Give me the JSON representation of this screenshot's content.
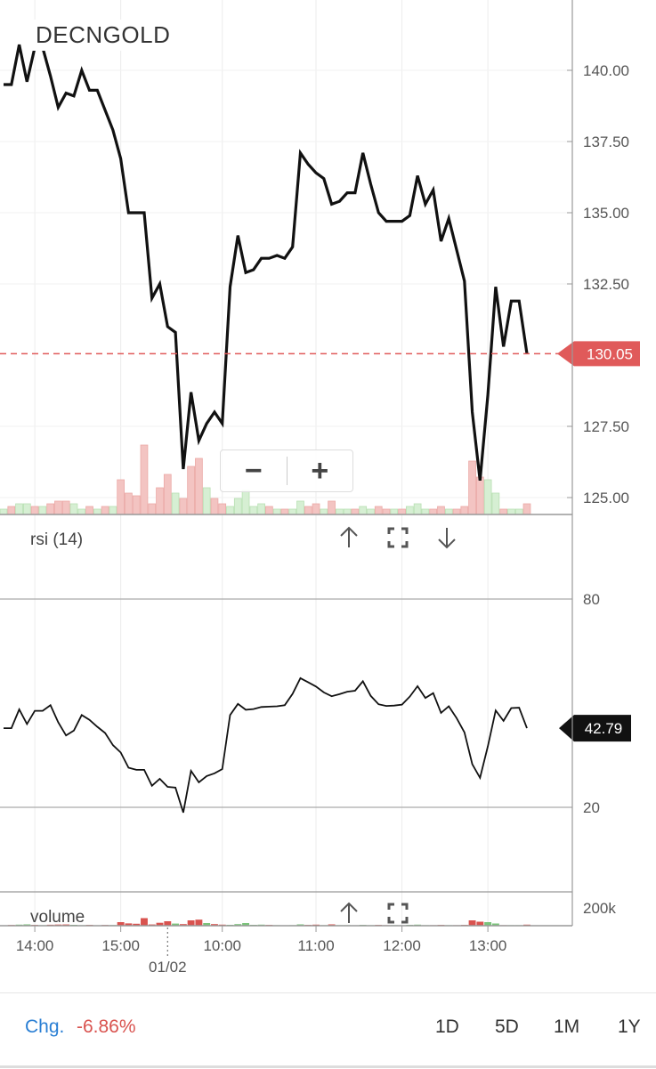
{
  "symbol": "DECNGOLD",
  "price_panel": {
    "y_ticks": [
      "140.00",
      "137.50",
      "135.00",
      "132.50",
      "127.50",
      "125.00"
    ],
    "last_price_label": "130.05",
    "last_price_color": "#e05a5a"
  },
  "rsi_panel": {
    "title": "rsi (14)",
    "y_ticks": [
      "80",
      "20"
    ],
    "last_value_label": "42.79"
  },
  "volume_panel": {
    "title": "volume",
    "y_tick": "200k"
  },
  "time_axis": {
    "labels": [
      "14:00",
      "15:00",
      "10:00",
      "11:00",
      "12:00",
      "13:00"
    ],
    "date_label": "01/02"
  },
  "zoom_controls": {
    "zoom_out": "−",
    "zoom_in": "+"
  },
  "footer": {
    "chg_label": "Chg.",
    "chg_value": "-6.86%",
    "ranges": [
      "1D",
      "5D",
      "1M",
      "1Y"
    ]
  },
  "colors": {
    "up": "#7bc47b",
    "down": "#d9534f",
    "price_line": "#111111",
    "chg_label": "#2a7fd4",
    "chg_value": "#d9534f"
  },
  "chart_data": {
    "type": "line",
    "price": {
      "ylim": [
        124.4,
        141.9
      ],
      "last": 130.05,
      "values": [
        139.5,
        139.5,
        140.9,
        139.6,
        140.8,
        140.8,
        139.8,
        138.7,
        139.2,
        139.1,
        140.0,
        139.3,
        139.3,
        138.6,
        137.9,
        136.9,
        135.0,
        135.0,
        135.0,
        132.0,
        132.5,
        131.0,
        130.8,
        126.0,
        128.7,
        127.0,
        127.6,
        128.0,
        127.6,
        132.4,
        134.2,
        132.9,
        133.0,
        133.4,
        133.4,
        133.5,
        133.4,
        133.8,
        137.1,
        136.7,
        136.4,
        136.2,
        135.3,
        135.4,
        135.7,
        135.7,
        137.1,
        136.0,
        135.0,
        134.7,
        134.7,
        134.7,
        134.9,
        136.3,
        135.3,
        135.8,
        134.0,
        134.8,
        133.7,
        132.6,
        128.0,
        125.6,
        128.6,
        132.4,
        130.3,
        131.9,
        131.9,
        130.05
      ]
    },
    "volume_overlay": {
      "ylim": [
        0,
        50
      ],
      "values": [
        2,
        3,
        4,
        4,
        3,
        3,
        4,
        5,
        5,
        4,
        2,
        3,
        2,
        3,
        3,
        13,
        8,
        7,
        26,
        4,
        10,
        15,
        8,
        6,
        18,
        21,
        10,
        6,
        4,
        3,
        6,
        9,
        3,
        4,
        3,
        2,
        2,
        2,
        5,
        3,
        4,
        2,
        5,
        2,
        2,
        2,
        3,
        2,
        3,
        2,
        2,
        2,
        3,
        4,
        2,
        2,
        3,
        2,
        2,
        3,
        20,
        14,
        13,
        8,
        2,
        2,
        2,
        4
      ],
      "up": [
        1,
        0,
        1,
        1,
        0,
        1,
        0,
        0,
        0,
        1,
        1,
        0,
        1,
        0,
        1,
        0,
        0,
        0,
        0,
        0,
        0,
        0,
        1,
        0,
        0,
        0,
        1,
        0,
        0,
        1,
        1,
        1,
        1,
        1,
        0,
        1,
        0,
        1,
        1,
        0,
        0,
        1,
        0,
        1,
        1,
        0,
        1,
        1,
        0,
        0,
        1,
        0,
        1,
        1,
        1,
        0,
        0,
        1,
        0,
        0,
        0,
        0,
        1,
        1,
        0,
        1,
        1,
        0
      ]
    },
    "rsi": {
      "ylim": [
        0,
        100
      ],
      "gridlines": [
        20,
        80
      ],
      "last": 42.79,
      "values": [
        42.8,
        42.8,
        48.2,
        44.0,
        47.8,
        47.8,
        49.4,
        44.5,
        40.7,
        42.1,
        46.6,
        45.2,
        43.2,
        41.4,
        37.9,
        35.8,
        31.4,
        30.8,
        30.8,
        26.2,
        28.2,
        25.9,
        25.7,
        18.5,
        30.5,
        27.2,
        29.0,
        29.8,
        31.0,
        46.6,
        49.8,
        48.1,
        48.3,
        48.9,
        49.0,
        49.1,
        49.4,
        52.7,
        57.2,
        56.0,
        54.8,
        53.1,
        52.0,
        52.6,
        53.3,
        53.6,
        56.3,
        52.1,
        49.7,
        49.2,
        49.3,
        49.6,
        51.9,
        54.9,
        51.5,
        52.9,
        47.2,
        49.1,
        45.7,
        41.6,
        32.4,
        28.5,
        37.6,
        47.9,
        44.9,
        48.6,
        48.7,
        42.79
      ]
    },
    "volume": {
      "ylim": [
        0,
        240000
      ],
      "y_tick": 200000,
      "values": [
        5000,
        8000,
        12000,
        15000,
        9000,
        6000,
        11000,
        13000,
        14000,
        10000,
        6000,
        9000,
        5000,
        8000,
        7000,
        40000,
        26000,
        22000,
        85000,
        14000,
        33000,
        50000,
        24000,
        18000,
        60000,
        68000,
        30000,
        18000,
        12000,
        10000,
        18000,
        30000,
        10000,
        12000,
        9000,
        6000,
        5000,
        6000,
        15000,
        9000,
        12000,
        6000,
        15000,
        6000,
        6000,
        5000,
        9000,
        6000,
        9000,
        6000,
        6000,
        5000,
        9000,
        12000,
        6000,
        6000,
        9000,
        6000,
        6000,
        9000,
        60000,
        45000,
        40000,
        25000,
        6000,
        6000,
        6000,
        12000
      ]
    },
    "x": {
      "tick_labels": [
        "14:00",
        "15:00",
        "10:00",
        "11:00",
        "12:00",
        "13:00"
      ],
      "tick_indices": [
        4,
        15,
        28,
        40,
        51,
        62
      ],
      "date_separator_index": 21,
      "date_label": "01/02"
    }
  }
}
